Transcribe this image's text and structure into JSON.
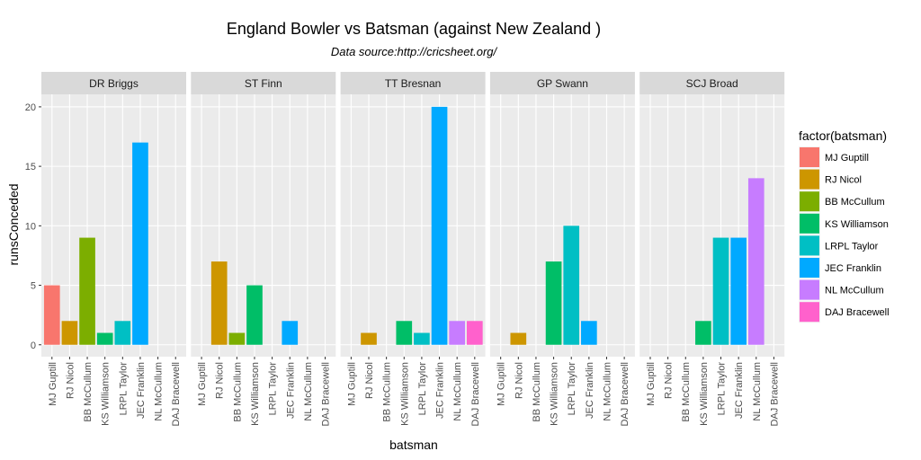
{
  "chart_data": {
    "type": "bar",
    "title": "England Bowler vs Batsman (against New Zealand )",
    "subtitle": "Data source:http://cricsheet.org/",
    "x_label": "batsman",
    "y_label": "runsConceded",
    "legend_title": "factor(batsman)",
    "categories": [
      "MJ Guptill",
      "RJ Nicol",
      "BB McCullum",
      "KS Williamson",
      "LRPL Taylor",
      "JEC Franklin",
      "NL McCullum",
      "DAJ Bracewell"
    ],
    "colors": [
      "#F8766D",
      "#CD9600",
      "#7CAE00",
      "#00BE67",
      "#00BFC4",
      "#00A9FF",
      "#C77CFF",
      "#FF61CC"
    ],
    "ylim": [
      -1,
      21.05
    ],
    "yticks": [
      0,
      5,
      10,
      15,
      20
    ],
    "grid": true,
    "legend": "right",
    "facets": [
      {
        "name": "DR Briggs",
        "values": [
          5,
          2,
          9,
          1,
          2,
          17,
          null,
          null
        ]
      },
      {
        "name": "ST Finn",
        "values": [
          null,
          7,
          1,
          5,
          null,
          2,
          null,
          null
        ]
      },
      {
        "name": "TT Bresnan",
        "values": [
          null,
          1,
          null,
          2,
          1,
          20,
          2,
          2
        ]
      },
      {
        "name": "GP Swann",
        "values": [
          null,
          1,
          null,
          7,
          10,
          2,
          null,
          null
        ]
      },
      {
        "name": "SCJ Broad",
        "values": [
          null,
          null,
          null,
          2,
          9,
          9,
          14,
          null
        ]
      }
    ]
  }
}
